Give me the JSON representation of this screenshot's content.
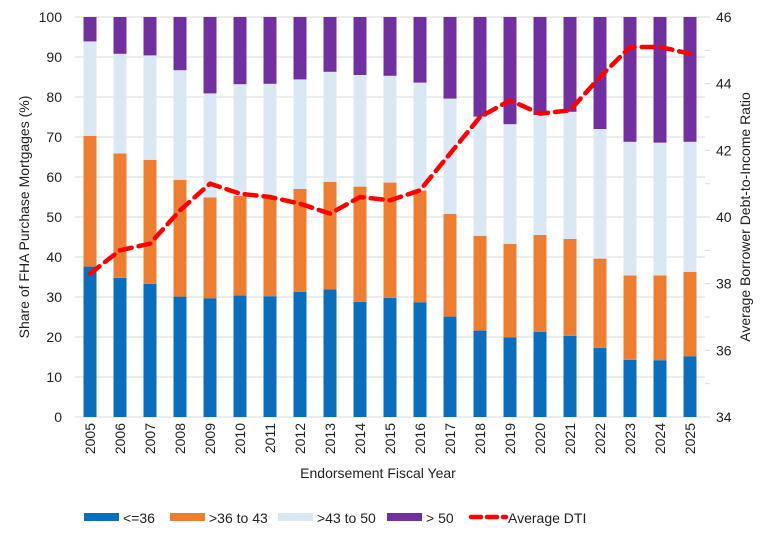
{
  "chart_data": {
    "type": "bar",
    "stacked": true,
    "title": "",
    "xlabel": "Endorsement Fiscal Year",
    "ylabel": "Share of FHA Purchase Mortgages (%)",
    "y2label": "Average Borrower Debt-to-Income Ratio",
    "ylim": [
      0,
      100
    ],
    "y2lim": [
      34,
      46
    ],
    "yticks": [
      "0",
      "10",
      "20",
      "30",
      "40",
      "50",
      "60",
      "70",
      "80",
      "90",
      "100"
    ],
    "y2ticks": [
      "34",
      "36",
      "38",
      "40",
      "42",
      "44",
      "46"
    ],
    "grid": true,
    "legend_position": "bottom",
    "categories": [
      "2005",
      "2006",
      "2007",
      "2008",
      "2009",
      "2010",
      "2011",
      "2012",
      "2013",
      "2014",
      "2015",
      "2016",
      "2017",
      "2018",
      "2019",
      "2020",
      "2021",
      "2022",
      "2023",
      "2024",
      "2025"
    ],
    "series": [
      {
        "name": "<=36",
        "color": "#0A6EBD",
        "values": [
          37.6,
          34.8,
          33.3,
          30.1,
          29.7,
          30.4,
          30.2,
          31.3,
          31.9,
          28.8,
          29.8,
          28.7,
          25.1,
          21.6,
          19.9,
          21.3,
          20.3,
          17.3,
          14.3,
          14.2,
          15.2
        ]
      },
      {
        "name": ">36 to 43",
        "color": "#ED7D31",
        "values": [
          32.7,
          31.1,
          31.0,
          29.2,
          25.2,
          24.9,
          25.1,
          25.7,
          26.9,
          28.8,
          28.8,
          27.9,
          25.7,
          23.7,
          23.4,
          24.2,
          24.2,
          22.3,
          21.1,
          21.2,
          21.1
        ]
      },
      {
        "name": ">43 to 50",
        "color": "#DAE7F5",
        "values": [
          23.6,
          24.9,
          26.1,
          27.4,
          26.0,
          27.9,
          28.0,
          27.4,
          27.5,
          27.9,
          26.7,
          27.0,
          28.8,
          29.8,
          29.9,
          30.0,
          31.8,
          32.4,
          33.4,
          33.2,
          32.5
        ]
      },
      {
        "name": "> 50",
        "color": "#7030A0",
        "values": [
          6.1,
          9.2,
          9.6,
          13.3,
          19.1,
          16.8,
          16.7,
          15.6,
          13.7,
          14.5,
          14.7,
          16.4,
          20.4,
          24.9,
          26.8,
          24.5,
          23.7,
          28.0,
          31.2,
          31.4,
          31.2
        ]
      }
    ],
    "line_series": {
      "name": "Average DTI",
      "color": "#FF0000",
      "axis": "right",
      "style": "dashed",
      "values": [
        38.3,
        39.0,
        39.2,
        40.2,
        41.0,
        40.7,
        40.6,
        40.4,
        40.1,
        40.6,
        40.5,
        40.8,
        41.9,
        43.0,
        43.5,
        43.1,
        43.2,
        44.2,
        45.1,
        45.1,
        44.9
      ]
    }
  }
}
